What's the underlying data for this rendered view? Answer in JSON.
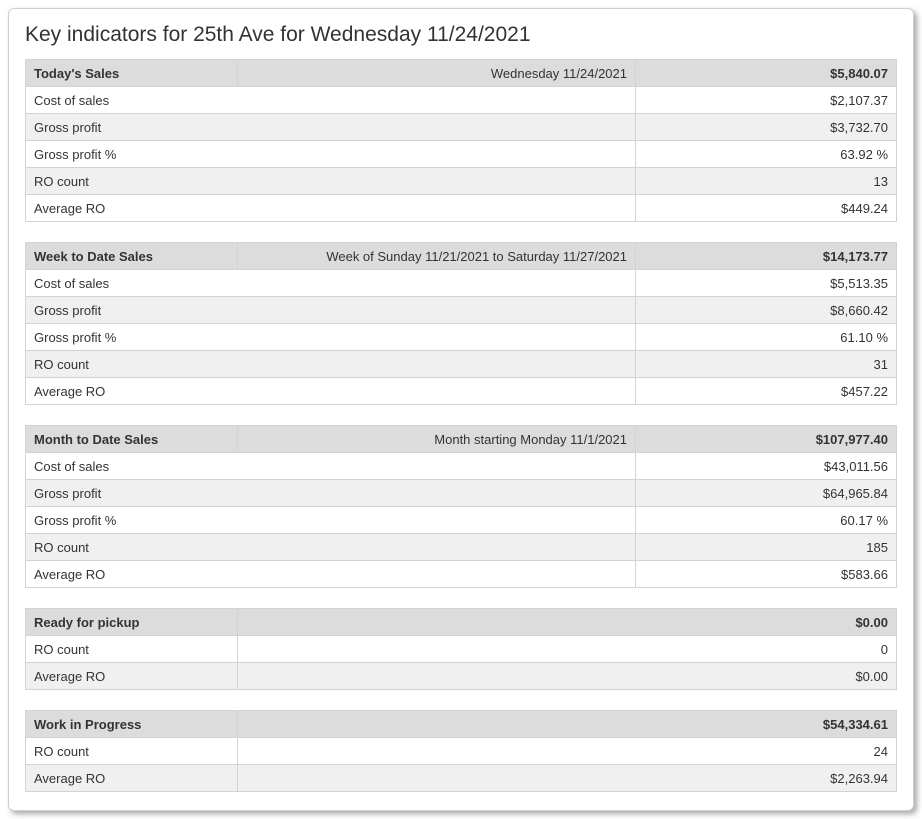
{
  "page": {
    "title": "Key indicators for 25th Ave for Wednesday 11/24/2021"
  },
  "colors": {
    "header_bg": "#dcdcdc",
    "stripe_bg": "#f0f0f0",
    "border": "#d3d3d3",
    "text": "#333333",
    "card_bg": "#ffffff"
  },
  "sections": [
    {
      "id": "today",
      "header_label": "Today's Sales",
      "header_sublabel": "Wednesday 11/24/2021",
      "header_value": "$5,840.07",
      "rows": [
        {
          "label": "Cost of sales",
          "value": "$2,107.37"
        },
        {
          "label": "Gross profit",
          "value": "$3,732.70"
        },
        {
          "label": "Gross profit %",
          "value": "63.92 %"
        },
        {
          "label": "RO count",
          "value": "13"
        },
        {
          "label": "Average RO",
          "value": "$449.24"
        }
      ]
    },
    {
      "id": "wtd",
      "header_label": "Week to Date Sales",
      "header_sublabel": "Week of Sunday 11/21/2021 to Saturday 11/27/2021",
      "header_value": "$14,173.77",
      "rows": [
        {
          "label": "Cost of sales",
          "value": "$5,513.35"
        },
        {
          "label": "Gross profit",
          "value": "$8,660.42"
        },
        {
          "label": "Gross profit %",
          "value": "61.10 %"
        },
        {
          "label": "RO count",
          "value": "31"
        },
        {
          "label": "Average RO",
          "value": "$457.22"
        }
      ]
    },
    {
      "id": "mtd",
      "header_label": "Month to Date Sales",
      "header_sublabel": "Month starting Monday 11/1/2021",
      "header_value": "$107,977.40",
      "rows": [
        {
          "label": "Cost of sales",
          "value": "$43,011.56"
        },
        {
          "label": "Gross profit",
          "value": "$64,965.84"
        },
        {
          "label": "Gross profit %",
          "value": "60.17 %"
        },
        {
          "label": "RO count",
          "value": "185"
        },
        {
          "label": "Average RO",
          "value": "$583.66"
        }
      ]
    },
    {
      "id": "pickup",
      "header_label": "Ready for pickup",
      "header_sublabel": "",
      "header_value": "$0.00",
      "rows": [
        {
          "label": "RO count",
          "value": "0"
        },
        {
          "label": "Average RO",
          "value": "$0.00"
        }
      ]
    },
    {
      "id": "wip",
      "header_label": "Work in Progress",
      "header_sublabel": "",
      "header_value": "$54,334.61",
      "rows": [
        {
          "label": "RO count",
          "value": "24"
        },
        {
          "label": "Average RO",
          "value": "$2,263.94"
        }
      ]
    }
  ]
}
